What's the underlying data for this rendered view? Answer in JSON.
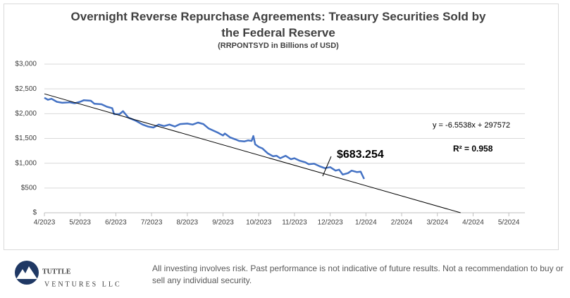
{
  "chart_data": {
    "type": "line",
    "title": "Overnight Reverse Repurchase Agreements: Treasury Securities Sold by the Federal Reserve",
    "subtitle": "(RRPONTSYD in Billions of USD)",
    "xlim": [
      0,
      13.45
    ],
    "xticks": [
      {
        "value": 0,
        "label": "4/2023"
      },
      {
        "value": 1,
        "label": "5/2023"
      },
      {
        "value": 2,
        "label": "6/2023"
      },
      {
        "value": 3,
        "label": "7/2023"
      },
      {
        "value": 4,
        "label": "8/2023"
      },
      {
        "value": 5,
        "label": "9/2023"
      },
      {
        "value": 6,
        "label": "10/2023"
      },
      {
        "value": 7,
        "label": "11/2023"
      },
      {
        "value": 8,
        "label": "12/2023"
      },
      {
        "value": 9,
        "label": "1/2024"
      },
      {
        "value": 10,
        "label": "2/2024"
      },
      {
        "value": 11,
        "label": "3/2024"
      },
      {
        "value": 12,
        "label": "4/2024"
      },
      {
        "value": 13,
        "label": "5/2024"
      }
    ],
    "ylim": [
      0,
      3000
    ],
    "yticks": [
      {
        "value": 0,
        "label": "$"
      },
      {
        "value": 500,
        "label": "$500"
      },
      {
        "value": 1000,
        "label": "$1,000"
      },
      {
        "value": 1500,
        "label": "$1,500"
      },
      {
        "value": 2000,
        "label": "$2,000"
      },
      {
        "value": 2500,
        "label": "$2,500"
      },
      {
        "value": 3000,
        "label": "$3,000"
      }
    ],
    "grid": true,
    "series": [
      {
        "color": "#4472c4",
        "x": [
          0,
          0.1,
          0.2,
          0.35,
          0.5,
          0.7,
          0.85,
          1.0,
          1.1,
          1.3,
          1.4,
          1.6,
          1.75,
          1.9,
          1.95,
          2.1,
          2.2,
          2.35,
          2.55,
          2.75,
          2.9,
          3.05,
          3.2,
          3.35,
          3.5,
          3.65,
          3.8,
          4.0,
          4.15,
          4.3,
          4.45,
          4.6,
          4.75,
          4.85,
          5.0,
          5.05,
          5.2,
          5.35,
          5.45,
          5.6,
          5.7,
          5.8,
          5.85,
          5.9,
          6.0,
          6.1,
          6.25,
          6.4,
          6.5,
          6.6,
          6.75,
          6.9,
          7.0,
          7.15,
          7.3,
          7.4,
          7.55,
          7.7,
          7.85,
          8.0,
          8.15,
          8.25,
          8.35,
          8.5,
          8.6,
          8.75,
          8.85,
          8.95
        ],
        "values": [
          2320,
          2280,
          2300,
          2240,
          2220,
          2230,
          2210,
          2240,
          2270,
          2260,
          2200,
          2190,
          2140,
          2110,
          1990,
          1990,
          2050,
          1920,
          1860,
          1780,
          1740,
          1720,
          1780,
          1750,
          1780,
          1740,
          1790,
          1800,
          1780,
          1820,
          1790,
          1700,
          1650,
          1620,
          1560,
          1600,
          1520,
          1480,
          1450,
          1440,
          1460,
          1450,
          1550,
          1380,
          1330,
          1300,
          1200,
          1140,
          1150,
          1100,
          1150,
          1080,
          1100,
          1050,
          1020,
          980,
          990,
          940,
          900,
          920,
          850,
          870,
          770,
          800,
          850,
          820,
          830,
          683
        ]
      },
      {
        "color": "#000000",
        "x": [
          0,
          11.65
        ],
        "values": [
          2400,
          0
        ]
      }
    ],
    "annotations": [
      "$683.254",
      "y = -6.5538x + 297572",
      "R² = 0.958"
    ]
  },
  "footer": {
    "logo_name": "TUTTLE",
    "logo_sub": "VENTURES LLC",
    "disclaimer": "All investing involves risk. Past performance is not indicative of future results. Not a recommendation to buy or sell any individual security."
  }
}
